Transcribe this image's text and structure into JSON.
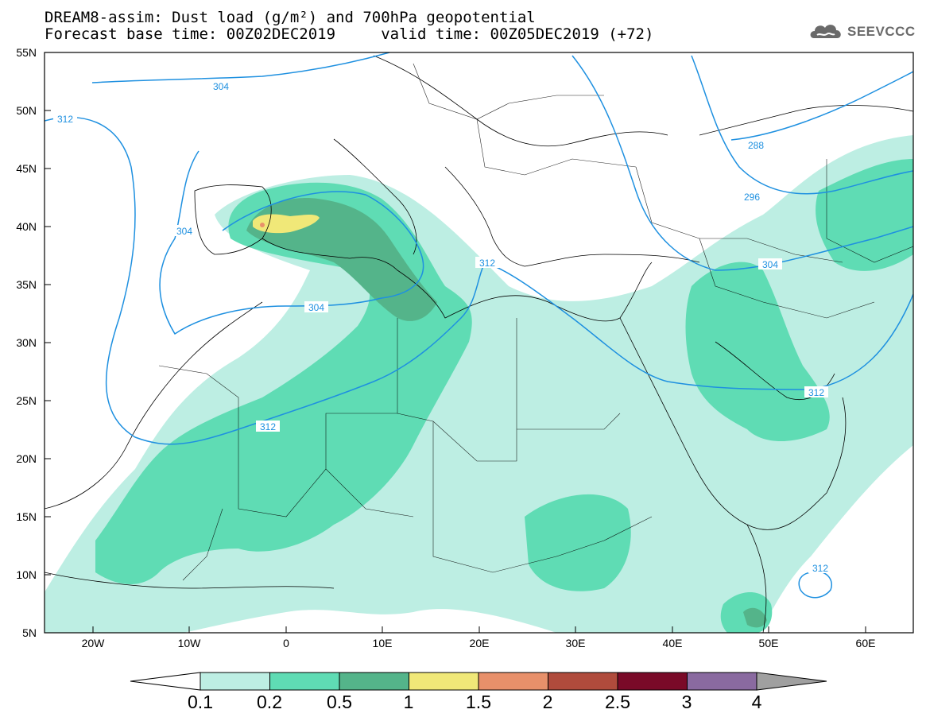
{
  "header": {
    "title_line1": "DREAM8-assim: Dust load (g/m²) and 700hPa geopotential",
    "title_line2": "Forecast base time: 00Z02DEC2019     valid time: 00Z05DEC2019 (+72)",
    "logo_text": "SEEVCCC",
    "logo_icon": "cloud-icon"
  },
  "axes": {
    "lat_labels": [
      "55N",
      "50N",
      "45N",
      "40N",
      "35N",
      "30N",
      "25N",
      "20N",
      "15N",
      "10N",
      "5N"
    ],
    "lon_labels": [
      "20W",
      "10W",
      "0",
      "10E",
      "20E",
      "30E",
      "40E",
      "50E",
      "60E"
    ]
  },
  "contours": {
    "color": "#1e90e0",
    "labels": [
      "304",
      "312",
      "304",
      "304",
      "312",
      "312",
      "288",
      "296",
      "304",
      "312",
      "312"
    ]
  },
  "colorbar": {
    "levels": [
      "0.1",
      "0.2",
      "0.5",
      "1",
      "1.5",
      "2",
      "2.5",
      "3",
      "4"
    ],
    "colors": [
      "#bdeee3",
      "#5fdcb4",
      "#54b48a",
      "#f0e878",
      "#e8906a",
      "#b04b3c",
      "#7a0a28",
      "#8a6aa0"
    ],
    "low_color": "#ffffff",
    "high_color": "#a0a0a0"
  }
}
